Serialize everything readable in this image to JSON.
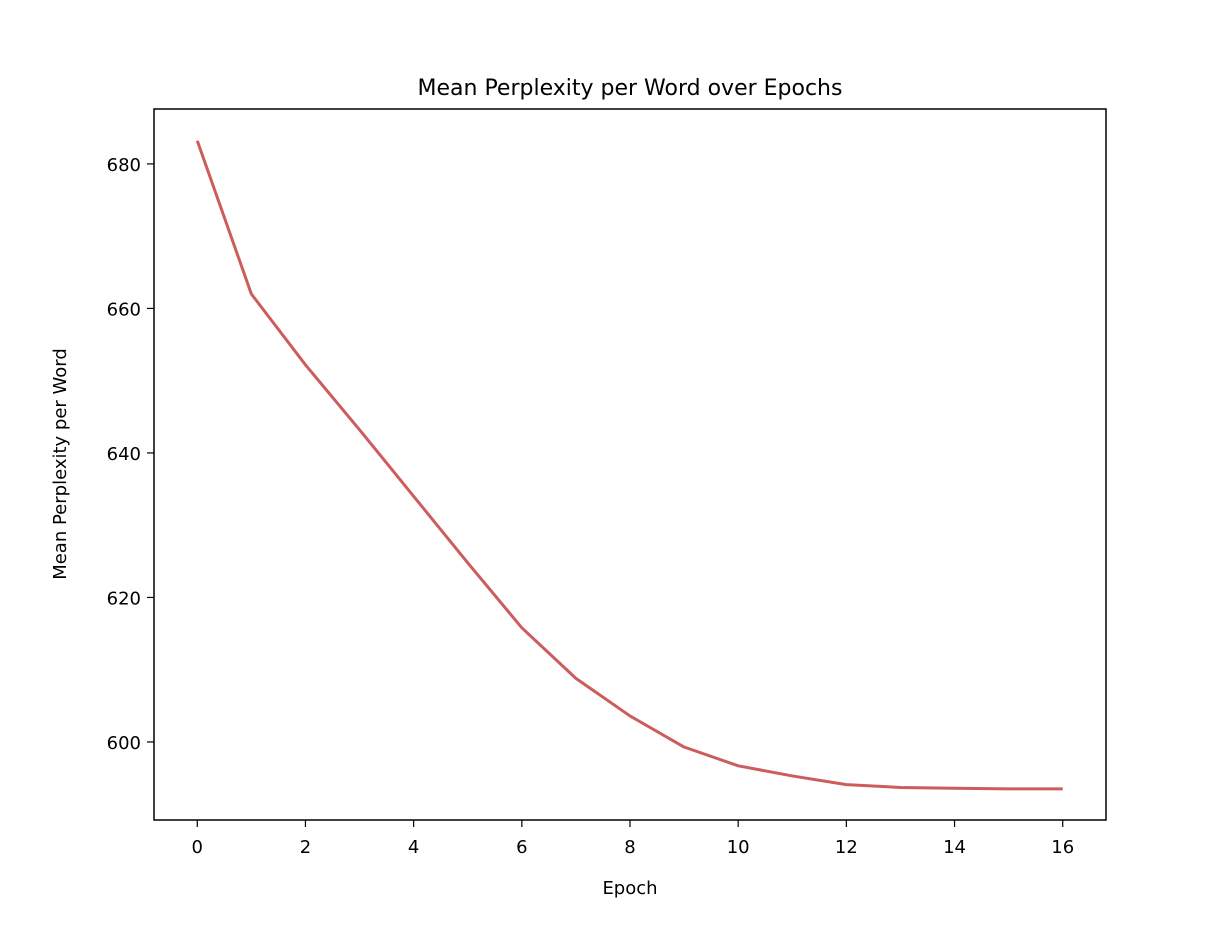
{
  "chart_data": {
    "type": "line",
    "title": "Mean Perplexity per Word over Epochs",
    "xlabel": "Epoch",
    "ylabel": "Mean Perplexity per Word",
    "xlim": [
      -0.8,
      16.8
    ],
    "ylim": [
      589.2,
      687.6
    ],
    "xticks": [
      0,
      2,
      4,
      6,
      8,
      10,
      12,
      14,
      16
    ],
    "yticks": [
      600,
      620,
      640,
      660,
      680
    ],
    "grid": false,
    "line_color": "#cd5c5c",
    "series": [
      {
        "x": [
          0,
          1,
          2,
          3,
          4,
          5,
          6,
          7,
          8,
          9,
          10,
          11,
          12,
          13,
          14,
          15,
          16
        ],
        "values": [
          683.2,
          662.0,
          652.2,
          643.2,
          634.0,
          624.8,
          615.8,
          608.8,
          603.6,
          599.3,
          596.7,
          595.3,
          594.1,
          593.7,
          593.6,
          593.5,
          593.5
        ]
      }
    ]
  }
}
